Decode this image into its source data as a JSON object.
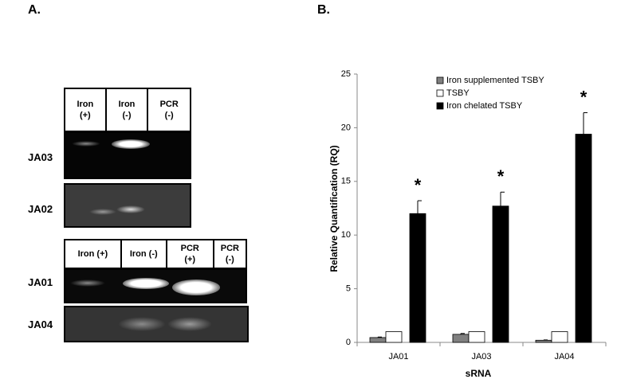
{
  "panel_a": {
    "label": "A.",
    "top_headers": [
      "Iron\n(+)",
      "Iron\n(-)",
      "PCR\n(-)"
    ],
    "bottom_headers": [
      "Iron (+)",
      "Iron (-)",
      "PCR\n(+)",
      "PCR\n(-)"
    ],
    "gel_labels": [
      "JA03",
      "JA02",
      "JA01",
      "JA04"
    ]
  },
  "chart_data": {
    "type": "bar",
    "panel_label": "B.",
    "y_label": "Relative Quantification (RQ)",
    "x_label": "sRNA",
    "categories": [
      "JA01",
      "JA03",
      "JA04"
    ],
    "series": [
      {
        "name": "Iron supplemented TSBY",
        "color": "#808080",
        "values": [
          0.45,
          0.75,
          0.2
        ],
        "errors": [
          0.05,
          0.08,
          0.03
        ]
      },
      {
        "name": "TSBY",
        "color": "#ffffff",
        "values": [
          1,
          1,
          1
        ]
      },
      {
        "name": "Iron chelated TSBY",
        "color": "#000000",
        "values": [
          12.0,
          12.7,
          19.4
        ],
        "errors": [
          1.2,
          1.3,
          2.0
        ]
      }
    ],
    "annotations": [
      "*",
      "*",
      "*"
    ],
    "ylim": [
      0,
      25
    ],
    "yticks": [
      0,
      5,
      10,
      15,
      20,
      25
    ],
    "legend": "upper left"
  }
}
